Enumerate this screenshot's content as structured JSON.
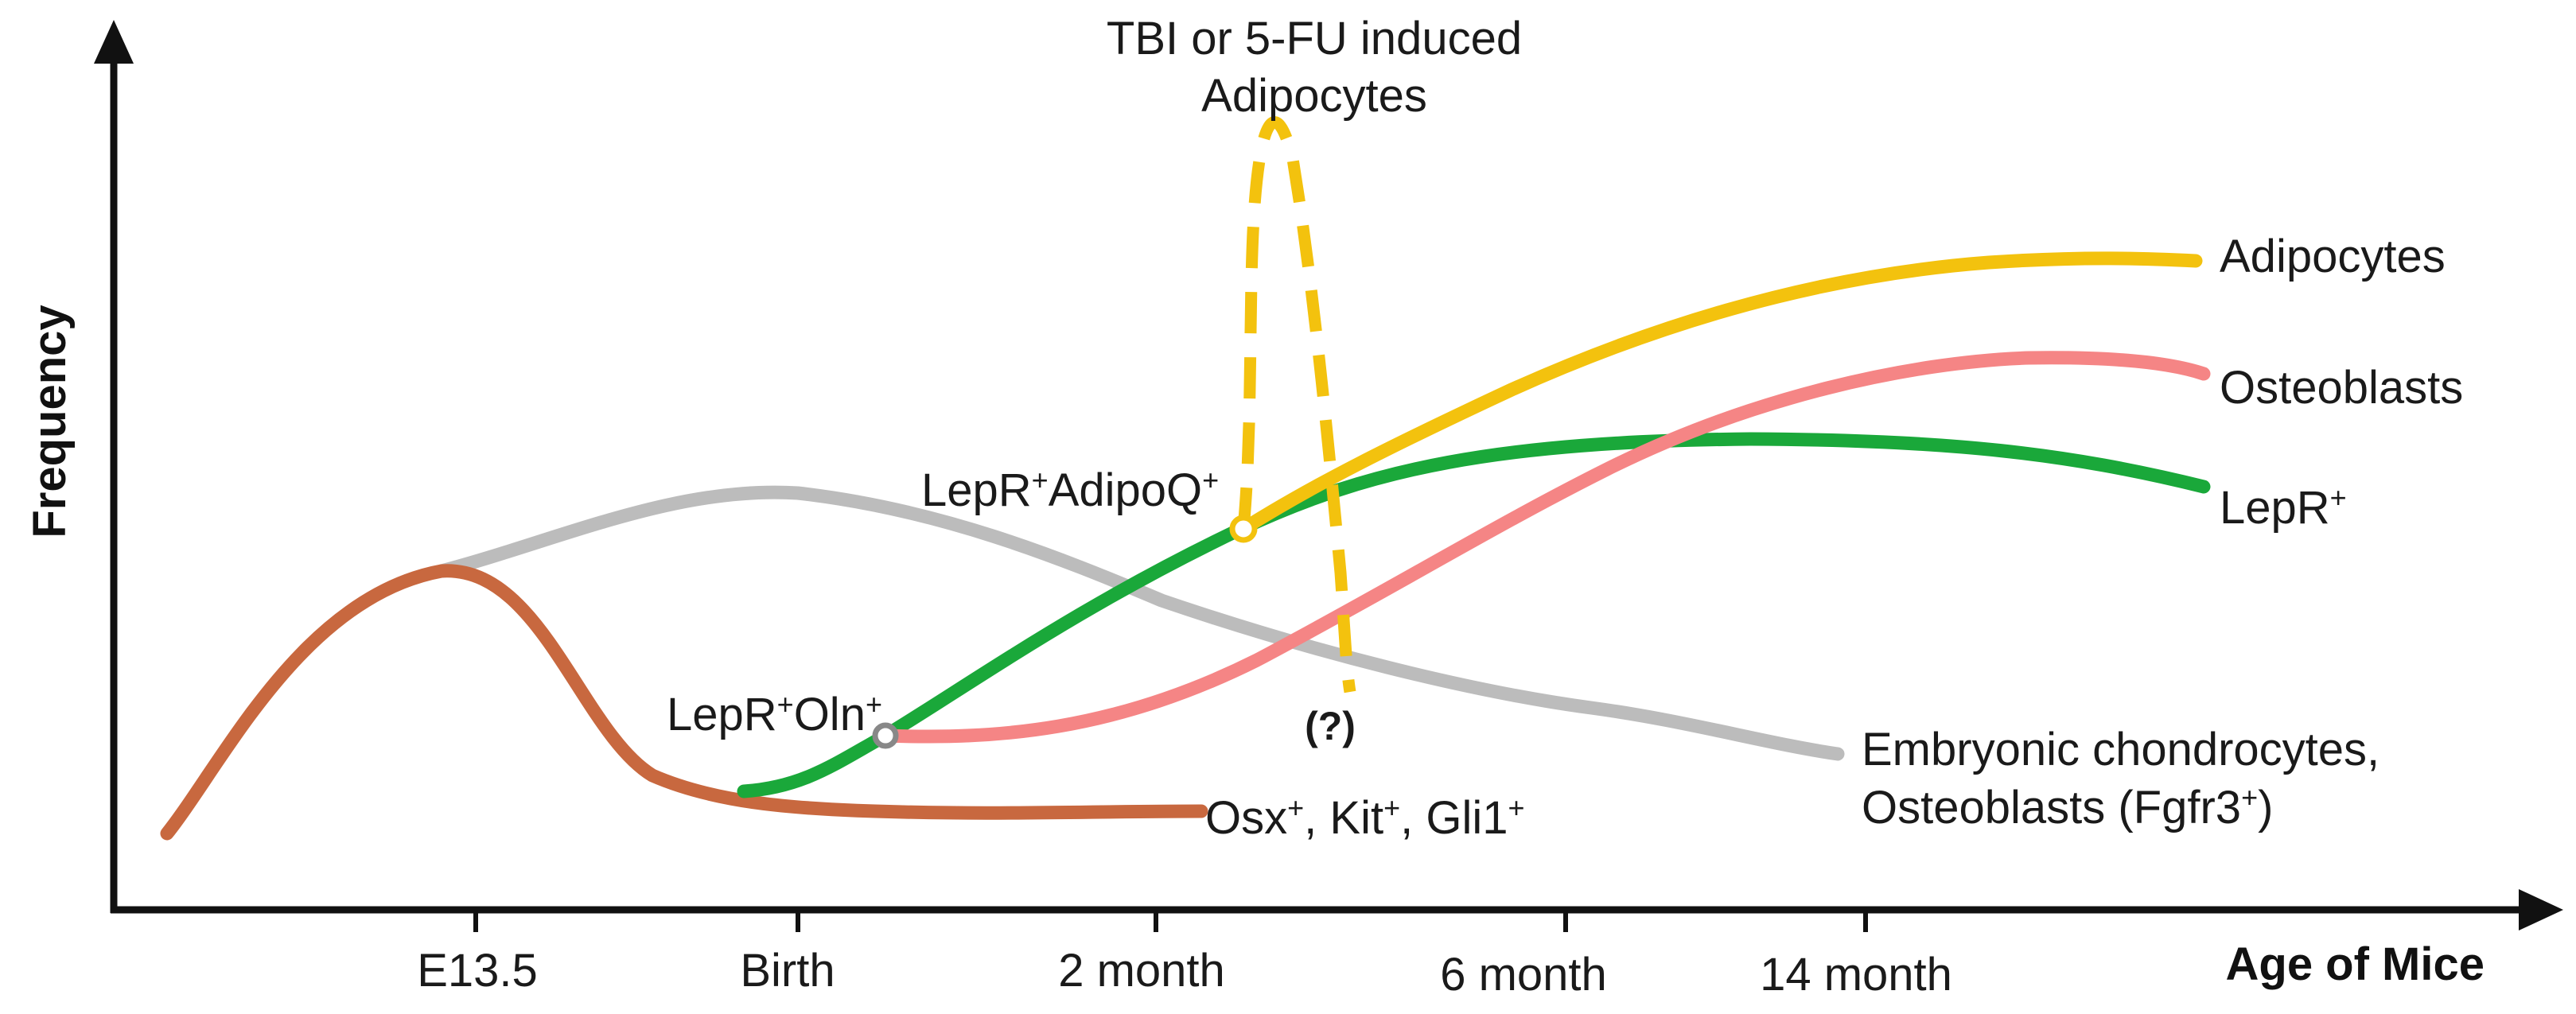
{
  "chart_data": {
    "type": "line",
    "title": "",
    "xlabel": "Age of Mice",
    "ylabel": "Frequency",
    "x_ticks": [
      "E13.5",
      "Birth",
      "2 month",
      "6 month",
      "14 month"
    ],
    "annotations": {
      "tbi_line1": "TBI or 5-FU induced",
      "tbi_line2": "Adipocytes",
      "question": "(?)",
      "lepr_adipoq_base": "LepR",
      "lepr_adipoq_sup1": "+",
      "lepr_adipoq_mid": "AdipoQ",
      "lepr_adipoq_sup2": "+",
      "lepr_oln_base": "LepR",
      "lepr_oln_sup1": "+",
      "lepr_oln_mid": "Oln",
      "lepr_oln_sup2": "+"
    },
    "series": [
      {
        "name": "Osx+, Kit+, Gli1+",
        "color": "#c8683f",
        "style": "solid",
        "label_parts": [
          "Osx",
          "+",
          ", Kit",
          "+",
          ", Gli1",
          "+"
        ]
      },
      {
        "name": "Embryonic chondrocytes, Osteoblasts (Fgfr3+)",
        "color": "#bcbcbc",
        "style": "solid",
        "label_line1": "Embryonic chondrocytes,",
        "label_line2_parts": [
          "Osteoblasts (Fgfr3",
          "+",
          ")"
        ]
      },
      {
        "name": "LepR+",
        "color": "#1aa83a",
        "style": "solid",
        "label_parts": [
          "LepR",
          "+"
        ]
      },
      {
        "name": "Adipocytes",
        "color": "#f3c20e",
        "style": "solid",
        "label": "Adipocytes"
      },
      {
        "name": "Osteoblasts",
        "color": "#f58585",
        "style": "solid",
        "label": "Osteoblasts"
      },
      {
        "name": "TBI or 5-FU induced Adipocytes",
        "color": "#f3c20e",
        "style": "dashed"
      }
    ],
    "markers": [
      {
        "name": "LepR+AdipoQ+",
        "color": "#f3c20e"
      },
      {
        "name": "LepR+Oln+",
        "color": "#888888"
      }
    ]
  }
}
